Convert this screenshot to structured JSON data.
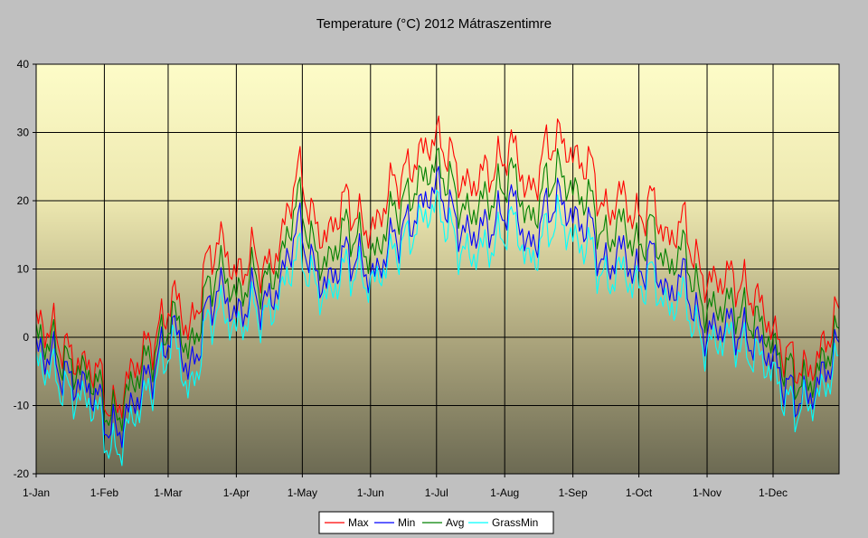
{
  "chart_data": {
    "type": "line",
    "title": "Temperature (°C) 2012 Mátraszentimre",
    "xlabel": "",
    "ylabel": "",
    "ylim": [
      -20,
      40
    ],
    "yticks": [
      -20,
      -10,
      0,
      10,
      20,
      30,
      40
    ],
    "x_unit": "day of year 2012",
    "x_range": [
      1,
      366
    ],
    "month_ticks": [
      {
        "label": "1-Jan",
        "day": 1
      },
      {
        "label": "1-Feb",
        "day": 32
      },
      {
        "label": "1-Mar",
        "day": 61
      },
      {
        "label": "1-Apr",
        "day": 92
      },
      {
        "label": "1-May",
        "day": 122
      },
      {
        "label": "1-Jun",
        "day": 153
      },
      {
        "label": "1-Jul",
        "day": 183
      },
      {
        "label": "1-Aug",
        "day": 214
      },
      {
        "label": "1-Sep",
        "day": 245
      },
      {
        "label": "1-Oct",
        "day": 275
      },
      {
        "label": "1-Nov",
        "day": 306
      },
      {
        "label": "1-Dec",
        "day": 336
      }
    ],
    "grid": true,
    "legend_position": "bottom-center",
    "anchor_days": [
      1,
      8,
      15,
      22,
      29,
      36,
      43,
      50,
      57,
      64,
      71,
      78,
      85,
      92,
      99,
      106,
      113,
      120,
      127,
      134,
      141,
      148,
      155,
      162,
      169,
      176,
      183,
      190,
      197,
      204,
      211,
      218,
      225,
      232,
      239,
      246,
      253,
      260,
      267,
      274,
      281,
      288,
      295,
      302,
      309,
      316,
      323,
      330,
      337,
      344,
      351,
      358,
      365
    ],
    "series": [
      {
        "name": "Max",
        "color": "#ff0000",
        "values": [
          2,
          1,
          -2,
          -4,
          -5,
          -11,
          -6,
          -2,
          1,
          6,
          1,
          10,
          14,
          9,
          12,
          10,
          15,
          24,
          17,
          15,
          20,
          17,
          16,
          22,
          24,
          27,
          29,
          26,
          22,
          24,
          25,
          28,
          21,
          27,
          29,
          26,
          25,
          18,
          21,
          17,
          20,
          14,
          17,
          10,
          8,
          9,
          7,
          5,
          0,
          -3,
          -5,
          -2,
          3
        ]
      },
      {
        "name": "Min",
        "color": "#0000ff",
        "values": [
          -2,
          -3,
          -6,
          -7,
          -9,
          -14,
          -11,
          -7,
          -3,
          1,
          -5,
          3,
          7,
          3,
          6,
          5,
          9,
          16,
          10,
          8,
          12,
          11,
          9,
          14,
          16,
          19,
          22,
          18,
          15,
          16,
          17,
          20,
          13,
          18,
          20,
          17,
          16,
          10,
          13,
          9,
          12,
          6,
          9,
          2,
          1,
          2,
          0,
          -1,
          -4,
          -8,
          -9,
          -6,
          -2
        ]
      },
      {
        "name": "Avg",
        "color": "#008000",
        "values": [
          0,
          -1,
          -4,
          -5,
          -7,
          -12,
          -8,
          -4,
          -1,
          3,
          -2,
          6,
          10,
          6,
          9,
          8,
          12,
          20,
          13,
          11,
          16,
          14,
          12,
          18,
          20,
          23,
          25,
          22,
          18,
          20,
          21,
          24,
          17,
          22,
          24,
          21,
          20,
          14,
          17,
          13,
          16,
          10,
          13,
          6,
          4,
          5,
          3,
          2,
          -2,
          -5,
          -7,
          -4,
          0
        ]
      },
      {
        "name": "GrassMin",
        "color": "#00ffff",
        "values": [
          -4,
          -5,
          -8,
          -9,
          -11,
          -17,
          -13,
          -9,
          -5,
          -1,
          -8,
          1,
          4,
          1,
          4,
          3,
          7,
          12,
          8,
          6,
          10,
          9,
          8,
          12,
          14,
          17,
          19,
          15,
          12,
          13,
          14,
          17,
          11,
          15,
          17,
          14,
          13,
          8,
          10,
          7,
          9,
          4,
          6,
          0,
          -1,
          0,
          -2,
          -3,
          -6,
          -10,
          -10,
          -8,
          -4
        ]
      }
    ]
  }
}
